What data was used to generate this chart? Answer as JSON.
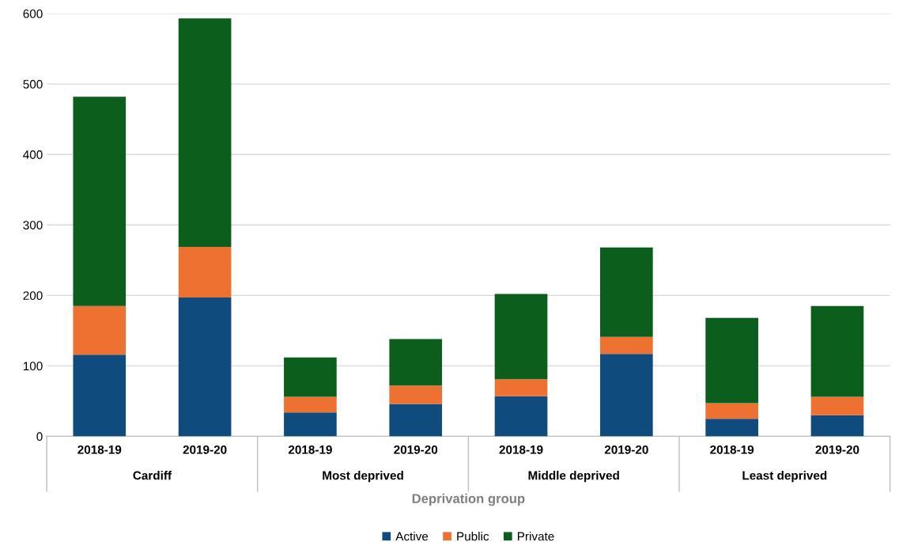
{
  "chart_data": {
    "type": "bar",
    "stacked": true,
    "categories": [
      "2018-19",
      "2019-20",
      "2018-19",
      "2019-20",
      "2018-19",
      "2019-20",
      "2018-19",
      "2019-20"
    ],
    "series": [
      {
        "name": "Active",
        "color": "#0f4c7d",
        "values": [
          116,
          197,
          34,
          46,
          57,
          117,
          25,
          30
        ]
      },
      {
        "name": "Public",
        "color": "#ed7232",
        "values": [
          69,
          72,
          22,
          26,
          24,
          24,
          22,
          26
        ]
      },
      {
        "name": "Private",
        "color": "#0b5e1c",
        "values": [
          297,
          324,
          56,
          66,
          121,
          127,
          121,
          129
        ]
      }
    ],
    "annotations": [
      "Cardiff",
      "Most deprived",
      "Middle deprived",
      "Least deprived"
    ],
    "xlabel": "Deprivation group",
    "ylim": [
      0,
      600
    ],
    "yticks": [
      0,
      100,
      200,
      300,
      400,
      500,
      600
    ],
    "grid": "y",
    "legend": "bottom"
  }
}
